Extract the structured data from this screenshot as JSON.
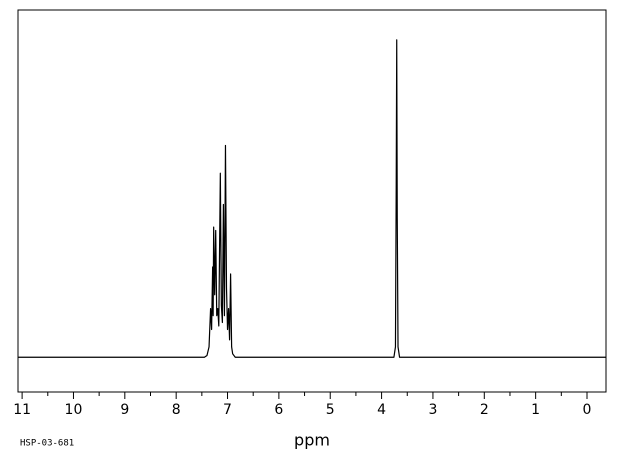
{
  "chart_data": {
    "type": "line",
    "x_label": "ppm",
    "annotation": "HSP-03-681",
    "xlim": [
      11.08,
      -0.37
    ],
    "ylim": [
      -10,
      100
    ],
    "xticks": [
      11,
      10,
      9,
      8,
      7,
      6,
      5,
      4,
      3,
      2,
      1,
      0
    ],
    "minor_ticks": true,
    "color": "#000000",
    "x": [
      11.08,
      7.45,
      7.4,
      7.36,
      7.33,
      7.31,
      7.29,
      7.28,
      7.27,
      7.25,
      7.23,
      7.21,
      7.19,
      7.17,
      7.14,
      7.12,
      7.1,
      7.08,
      7.06,
      7.04,
      7.02,
      7.0,
      6.98,
      6.96,
      6.94,
      6.92,
      6.9,
      6.85,
      3.76,
      3.73,
      3.715,
      3.705,
      3.695,
      3.68,
      3.65,
      -0.37
    ],
    "values": [
      0,
      0,
      0.5,
      3,
      14,
      8,
      26,
      12,
      37.5,
      18,
      36.5,
      12,
      14,
      9,
      53,
      15,
      10,
      44,
      12,
      61,
      20,
      8,
      14,
      5,
      24,
      3,
      1,
      0,
      0,
      3,
      50,
      91.4,
      40,
      3,
      0,
      0
    ]
  }
}
